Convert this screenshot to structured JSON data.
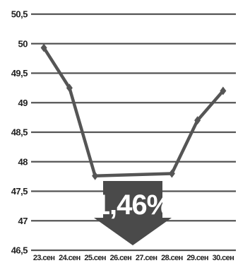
{
  "chart_data": {
    "type": "line",
    "title": "",
    "xlabel": "",
    "ylabel": "",
    "categories": [
      "23.сен",
      "24.сен",
      "25.сен",
      "26.сен",
      "27.сен",
      "28.сен",
      "29.сен",
      "30.сен"
    ],
    "series": [
      {
        "values": [
          49.93,
          49.25,
          47.76,
          null,
          null,
          47.8,
          48.7,
          49.2
        ]
      }
    ],
    "ylim": [
      46.5,
      50.5
    ],
    "yticks": [
      46.5,
      47,
      47.5,
      48,
      48.5,
      49,
      49.5,
      50,
      50.5
    ],
    "ytick_labels": [
      "46,5",
      "47",
      "47,5",
      "48",
      "48,5",
      "49",
      "49,5",
      "50",
      "50,5"
    ],
    "grid": true,
    "legend": "none",
    "annotation": {
      "text": "1,46%",
      "direction": "down"
    },
    "colors": {
      "line": "#555555",
      "grid": "#555555",
      "arrow": "#4a4a4a",
      "annotation_text": "#ffffff",
      "background": "#ffffff"
    }
  }
}
